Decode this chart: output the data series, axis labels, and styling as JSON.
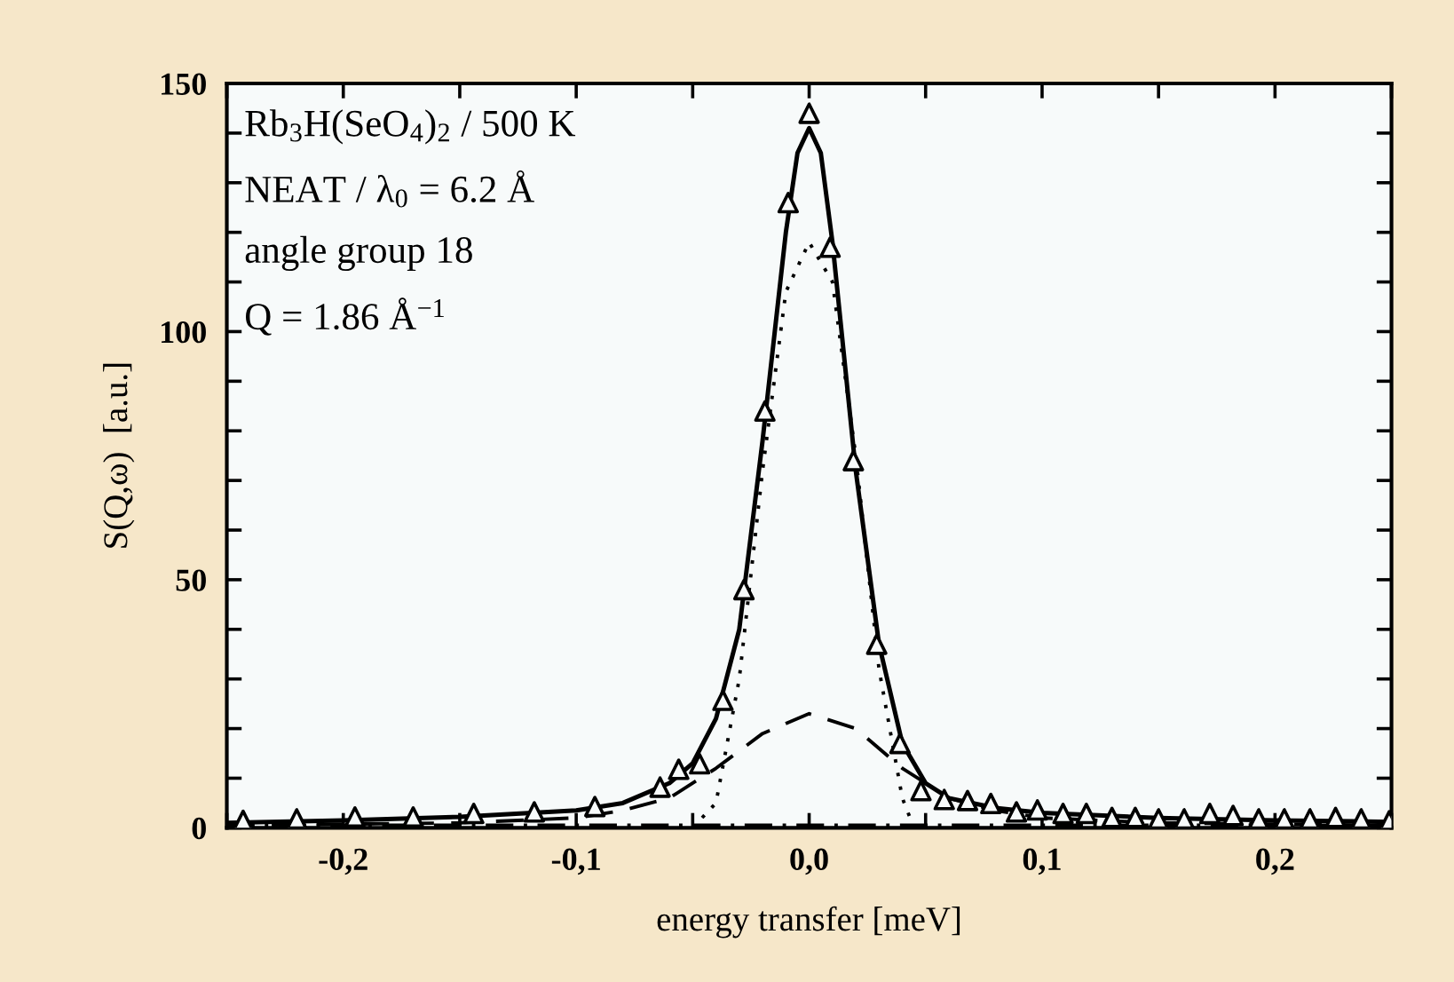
{
  "chart_data": {
    "type": "line",
    "xlabel": "energy transfer [meV]",
    "ylabel": "S(Q,ω)  [a.u.]",
    "annotations": [
      "Rb$_{3}$H(SeO$_{4}$)$_{2}$ / 500 K",
      "NEAT / λ$_{0}$ = 6.2 Å",
      "angle group 18",
      "Q = 1.86 Å$^{−1}$"
    ],
    "xlim": [
      -0.25,
      0.25
    ],
    "ylim": [
      0,
      150
    ],
    "xticks": [
      {
        "value": -0.25,
        "label": null
      },
      {
        "value": -0.2,
        "label": "-0,2"
      },
      {
        "value": -0.15,
        "label": null
      },
      {
        "value": -0.1,
        "label": "-0,1"
      },
      {
        "value": -0.05,
        "label": null
      },
      {
        "value": 0.0,
        "label": "0,0"
      },
      {
        "value": 0.05,
        "label": null
      },
      {
        "value": 0.1,
        "label": "0,1"
      },
      {
        "value": 0.15,
        "label": null
      },
      {
        "value": 0.2,
        "label": "0,2"
      },
      {
        "value": 0.25,
        "label": null
      }
    ],
    "yticks": [
      0,
      {
        "value": 10,
        "label": null
      },
      {
        "value": 20,
        "label": null
      },
      {
        "value": 30,
        "label": null
      },
      {
        "value": 40,
        "label": null
      },
      50,
      {
        "value": 60,
        "label": null
      },
      {
        "value": 70,
        "label": null
      },
      {
        "value": 80,
        "label": null
      },
      {
        "value": 90,
        "label": null
      },
      100,
      {
        "value": 110,
        "label": null
      },
      {
        "value": 120,
        "label": null
      },
      {
        "value": 130,
        "label": null
      },
      {
        "value": 140,
        "label": null
      },
      150
    ],
    "grid": false,
    "series": [
      {
        "color": "#000000",
        "line_style": "dashdot",
        "x": [
          -0.25,
          0.25
        ],
        "values": [
          0.5,
          0.5
        ]
      },
      {
        "color": "#000000",
        "line_style": "dashed",
        "x": [
          -0.25,
          -0.15,
          -0.1,
          -0.08,
          -0.06,
          -0.04,
          -0.02,
          0.0,
          0.02,
          0.04,
          0.06,
          0.08,
          0.1,
          0.15,
          0.25
        ],
        "values": [
          0.5,
          1,
          2,
          3.5,
          6,
          12,
          19,
          23,
          20,
          12,
          6,
          3.5,
          2,
          1,
          0.5
        ]
      },
      {
        "color": "#000000",
        "line_style": "dotted",
        "x": [
          -0.05,
          -0.04,
          -0.03,
          -0.02,
          -0.01,
          0.0,
          0.01,
          0.02,
          0.03,
          0.04,
          0.045
        ],
        "values": [
          0,
          5,
          30,
          72,
          108,
          118,
          110,
          75,
          32,
          6,
          0
        ]
      },
      {
        "color": "#000000",
        "line_style": "solid",
        "x": [
          -0.25,
          -0.2,
          -0.15,
          -0.1,
          -0.08,
          -0.06,
          -0.05,
          -0.04,
          -0.03,
          -0.02,
          -0.01,
          -0.005,
          0.0,
          0.005,
          0.01,
          0.02,
          0.03,
          0.04,
          0.05,
          0.06,
          0.08,
          0.1,
          0.15,
          0.2,
          0.25
        ],
        "values": [
          1.0,
          1.5,
          2.2,
          3.5,
          5,
          9,
          13,
          22,
          40,
          78,
          120,
          136,
          141,
          136,
          118,
          72,
          37,
          17,
          9,
          6,
          4,
          3,
          2,
          1.5,
          1.2
        ]
      },
      {
        "type": "scatter",
        "color": "#000000",
        "marker": "triangle",
        "x": [
          -0.243,
          -0.22,
          -0.195,
          -0.17,
          -0.144,
          -0.118,
          -0.092,
          -0.064,
          -0.056,
          -0.047,
          -0.037,
          -0.028,
          -0.019,
          -0.009,
          0.0,
          0.009,
          0.019,
          0.029,
          0.039,
          0.048,
          0.058,
          0.068,
          0.078,
          0.089,
          0.098,
          0.109,
          0.119,
          0.13,
          0.14,
          0.15,
          0.161,
          0.172,
          0.182,
          0.193,
          0.204,
          0.215,
          0.226,
          0.237,
          0.249
        ],
        "values": [
          1.5,
          1.8,
          2.2,
          2.2,
          2.9,
          3.2,
          4.3,
          8.2,
          11.8,
          12.9,
          25.7,
          48,
          84,
          126,
          144,
          117,
          74,
          37,
          17,
          7.5,
          5.7,
          5.5,
          4.9,
          3.2,
          3.6,
          2.9,
          2.9,
          2.1,
          2.1,
          1.8,
          1.8,
          2.9,
          2.5,
          1.8,
          1.8,
          1.8,
          2.1,
          1.8,
          1.4
        ]
      }
    ]
  }
}
